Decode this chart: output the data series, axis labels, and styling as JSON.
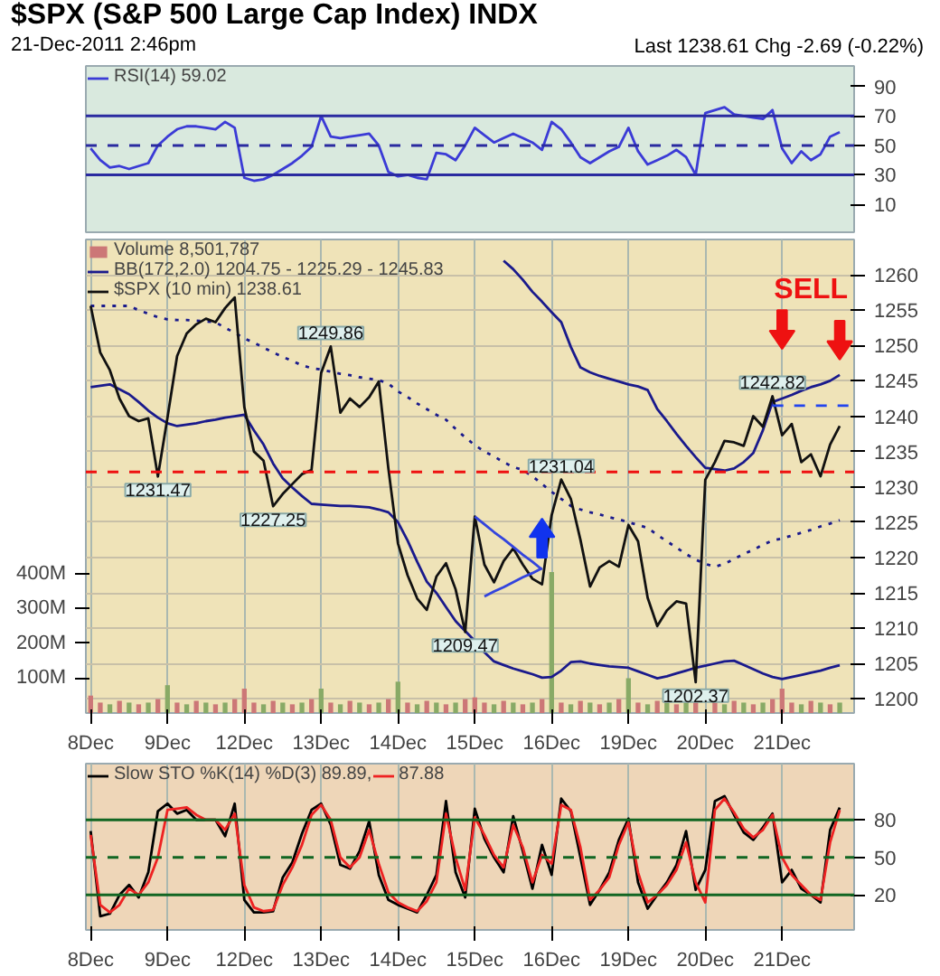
{
  "chart_data": [
    {
      "type": "line",
      "title": "$SPX (S&P 500 Large Cap Index) INDX",
      "subtitle": "21-Dec-2011 2:46pm",
      "annotations": [
        "Last 1238.61 Chg -2.69 (-0.22%)"
      ],
      "categories": [
        null,
        null,
        null,
        null,
        null,
        null,
        null,
        null,
        null,
        null,
        null,
        null,
        null,
        null,
        null,
        null,
        null,
        null,
        null,
        null,
        null,
        null,
        null,
        null,
        null,
        null,
        null,
        null,
        null,
        null,
        null,
        null,
        null,
        null,
        null,
        null,
        null,
        null,
        null,
        null,
        null,
        null,
        null,
        null,
        null,
        null,
        null,
        null,
        null,
        null,
        null,
        null,
        null,
        null,
        null,
        null,
        null,
        null,
        null,
        null,
        null,
        null,
        null,
        null,
        null,
        null,
        null,
        null,
        null,
        null,
        null,
        null,
        null,
        null,
        null,
        null,
        null,
        null,
        null,
        null
      ],
      "ylim": [
        -9,
        104
      ],
      "yticks": [
        10,
        30,
        50,
        70,
        90
      ],
      "tick_labels": "y",
      "legend": "top left",
      "ref_lines": [
        {
          "axis": "y",
          "value": 70,
          "color": "#2a2aa0"
        },
        {
          "axis": "y",
          "value": 50,
          "color": "#2a2aa0",
          "line_style": "dashed"
        },
        {
          "axis": "y",
          "value": 30,
          "color": "#2a2aa0"
        }
      ],
      "series": [
        {
          "name": "RSI(14) 59.02",
          "color": "#3b3bd6",
          "values": [
            48,
            40,
            35,
            36,
            34,
            36,
            38,
            50,
            56,
            61,
            63,
            63,
            62,
            61,
            66,
            62,
            28,
            26,
            27,
            30,
            34,
            38,
            43,
            49,
            70,
            56,
            55,
            56,
            57,
            58,
            50,
            32,
            29,
            30,
            28,
            27,
            45,
            44,
            40,
            50,
            62,
            57,
            52,
            55,
            58,
            55,
            52,
            47,
            66,
            61,
            52,
            42,
            38,
            42,
            46,
            49,
            62,
            46,
            37,
            40,
            43,
            47,
            42,
            30,
            72,
            74,
            76,
            71,
            70,
            69,
            68,
            74,
            48,
            38,
            46,
            40,
            44,
            56,
            59.02,
            null
          ]
        }
      ]
    },
    {
      "type": "line",
      "categories": [
        "8Dec",
        null,
        null,
        null,
        null,
        null,
        null,
        null,
        "9Dec",
        null,
        null,
        null,
        null,
        null,
        null,
        null,
        "12Dec",
        null,
        null,
        null,
        null,
        null,
        null,
        null,
        "13Dec",
        null,
        null,
        null,
        null,
        null,
        null,
        null,
        "14Dec",
        null,
        null,
        null,
        null,
        null,
        null,
        null,
        "15Dec",
        null,
        null,
        null,
        null,
        null,
        null,
        null,
        "16Dec",
        null,
        null,
        null,
        null,
        null,
        null,
        null,
        "19Dec",
        null,
        null,
        null,
        null,
        null,
        null,
        null,
        "20Dec",
        null,
        null,
        null,
        null,
        null,
        null,
        null,
        "21Dec",
        null,
        null,
        null,
        null,
        null,
        null,
        null
      ],
      "ylim": [
        1198,
        1265
      ],
      "yticks": [
        1200,
        1205,
        1210,
        1215,
        1220,
        1225,
        1230,
        1235,
        1240,
        1245,
        1250,
        1255,
        1260
      ],
      "y2lim": [
        0,
        1360
      ],
      "y2ticks": [
        {
          "value": 100,
          "label": "100M"
        },
        {
          "value": 200,
          "label": "200M"
        },
        {
          "value": 300,
          "label": "300M"
        },
        {
          "value": 400,
          "label": "400M"
        }
      ],
      "grid": true,
      "legend": "top left",
      "ref_lines": [
        {
          "axis": "y",
          "value": 1232.1,
          "color": "#ee1111",
          "line_style": "dashed"
        }
      ],
      "annotations": [
        {
          "text": "1231.47",
          "y": 1231.47
        },
        {
          "text": "1227.25",
          "y": 1227.25
        },
        {
          "text": "1249.86",
          "y": 1249.86
        },
        {
          "text": "1209.47",
          "y": 1209.47
        },
        {
          "text": "1231.04",
          "y": 1231.04
        },
        {
          "text": "1202.37",
          "y": 1202.37
        },
        {
          "text": "1242.82",
          "y": 1242.82
        },
        "SELL"
      ],
      "series": [
        {
          "name": "Volume 8,501,787",
          "type": "bar",
          "axis": "y2",
          "values": [
            50,
            30,
            25,
            35,
            30,
            25,
            30,
            40,
            80,
            30,
            25,
            35,
            30,
            25,
            30,
            40,
            70,
            30,
            25,
            35,
            30,
            25,
            30,
            40,
            70,
            30,
            25,
            35,
            30,
            25,
            30,
            40,
            90,
            30,
            25,
            35,
            30,
            25,
            30,
            40,
            45,
            30,
            25,
            35,
            30,
            25,
            30,
            40,
            405,
            30,
            25,
            35,
            30,
            25,
            30,
            40,
            100,
            30,
            25,
            35,
            30,
            25,
            30,
            40,
            null,
            30,
            25,
            35,
            30,
            25,
            30,
            40,
            70,
            30,
            25,
            35,
            30,
            25,
            30,
            null
          ],
          "colors": [
            "#cc7777",
            "#cc7777",
            "#88aa66",
            "#cc7777",
            "#88aa66",
            "#cc7777",
            "#88aa66",
            "#cc7777",
            "#88aa66",
            "#cc7777",
            "#88aa66",
            "#cc7777",
            "#88aa66",
            "#cc7777",
            "#88aa66",
            "#cc7777",
            "#cc7777",
            "#cc7777",
            "#88aa66",
            "#cc7777",
            "#88aa66",
            "#cc7777",
            "#88aa66",
            "#cc7777",
            "#88aa66",
            "#cc7777",
            "#88aa66",
            "#cc7777",
            "#88aa66",
            "#cc7777",
            "#88aa66",
            "#cc7777",
            "#88aa66",
            "#cc7777",
            "#88aa66",
            "#cc7777",
            "#88aa66",
            "#cc7777",
            "#88aa66",
            "#cc7777",
            "#cc7777",
            "#cc7777",
            "#88aa66",
            "#cc7777",
            "#88aa66",
            "#cc7777",
            "#88aa66",
            "#cc7777",
            "#88aa66",
            "#cc7777",
            "#88aa66",
            "#cc7777",
            "#88aa66",
            "#cc7777",
            "#88aa66",
            "#cc7777",
            "#88aa66",
            "#cc7777",
            "#88aa66",
            "#cc7777",
            "#88aa66",
            "#cc7777",
            "#88aa66",
            "#cc7777",
            "#cc7777",
            "#cc7777",
            "#88aa66",
            "#cc7777",
            "#88aa66",
            "#cc7777",
            "#88aa66",
            "#cc7777",
            "#cc7777",
            "#cc7777",
            "#88aa66",
            "#cc7777",
            "#88aa66",
            "#cc7777",
            "#88aa66",
            "#cc7777"
          ]
        },
        {
          "name": "BB(172,2.0) 1204.75 - 1225.29 - 1245.83",
          "color": "#1a1a8c",
          "values": [
            null,
            null,
            null,
            null,
            null,
            null,
            null,
            null,
            null,
            null,
            null,
            null,
            null,
            null,
            null,
            null,
            null,
            null,
            null,
            null,
            null,
            null,
            null,
            null,
            null,
            null,
            null,
            null,
            null,
            null,
            null,
            null,
            null,
            null,
            null,
            null,
            null,
            null,
            null,
            null,
            null,
            null,
            null,
            1262,
            1260.8,
            1259.3,
            1257.6,
            1256.2,
            1254.7,
            1253.3,
            1249.8,
            1246.9,
            1246.2,
            1245.7,
            1245.3,
            1244.9,
            1244.5,
            1244.2,
            1243.7,
            1241,
            1239.3,
            1237.5,
            1235.8,
            1234.2,
            1232.7,
            1232.5,
            1232.3,
            1232.6,
            1233.5,
            1234.8,
            1238,
            1242,
            1242.5,
            1243,
            1243.6,
            1244.1,
            1244.5,
            1245,
            1245.83,
            null
          ]
        },
        {
          "color": "#1a1a8c",
          "line_style": "dotted",
          "values": [
            1255.6,
            1255.6,
            1255.6,
            1255.6,
            1255.6,
            1255,
            1254.5,
            1254,
            1253.7,
            1253.6,
            1253.6,
            1253.5,
            1253.4,
            1253.3,
            1252.5,
            1251.8,
            1251,
            1250.4,
            1249.7,
            1249,
            1248.4,
            1247.8,
            1247.2,
            1246.8,
            1246.6,
            1246.3,
            1246,
            1245.8,
            1245.5,
            1245.3,
            1245.1,
            1244.6,
            1243.5,
            1242.7,
            1241.8,
            1241,
            1240.2,
            1239.5,
            1238.2,
            1237,
            1235.9,
            1235,
            1234.3,
            1233.5,
            1232.8,
            1232.4,
            1231.5,
            1230.4,
            1229.3,
            1228.3,
            1227.3,
            1226.8,
            1226.4,
            1226.1,
            1225.7,
            1225.4,
            1225,
            1224.6,
            1224.2,
            1223.2,
            1222.3,
            1221.4,
            1220.5,
            1219.7,
            1219.1,
            1218.7,
            1219.1,
            1219.8,
            1220.5,
            1221.1,
            1221.8,
            1222.4,
            1222.7,
            1223.1,
            1223.5,
            1223.9,
            1224.4,
            1224.8,
            1225.29,
            null
          ]
        },
        {
          "color": "#1a1a8c",
          "values": [
            1244.1,
            1244.3,
            1244.5,
            1243.8,
            1243.1,
            1242,
            1240.8,
            1239.8,
            1239,
            1238.6,
            1238.8,
            1239,
            1239.3,
            1239.5,
            1239.8,
            1240,
            1240.2,
            1238,
            1236,
            1233.3,
            1231.2,
            1229.9,
            1228.7,
            1227.6,
            1227.5,
            1227.4,
            1227.3,
            1227.3,
            1227.2,
            1227.1,
            1226.8,
            1226.4,
            1225,
            1222.4,
            1219.4,
            1216.6,
            1215,
            1213,
            1211,
            1209.6,
            1208.2,
            1206.6,
            1205.3,
            1204.8,
            1204.3,
            1203.9,
            1203.5,
            1203,
            1203.1,
            1204,
            1205.2,
            1205.3,
            1205,
            1204.8,
            1204.6,
            1204.5,
            1204.4,
            1203.9,
            1203.4,
            1202.9,
            1203.2,
            1203.6,
            1204,
            1204.4,
            1204.7,
            1205,
            1205.3,
            1205.4,
            1204.8,
            1204.2,
            1203.6,
            1203.1,
            1202.8,
            1203.1,
            1203.4,
            1203.7,
            1204,
            1204.4,
            1204.75,
            null
          ]
        },
        {
          "name": "$SPX (10 min) 1238.61",
          "color": "#111111",
          "values": [
            1255.6,
            1249,
            1246.5,
            1242.5,
            1240,
            1239.3,
            1239.7,
            1231.47,
            1239.8,
            1248.5,
            1251.7,
            1253,
            1253.8,
            1253.3,
            1255.3,
            1256.8,
            1241.3,
            1235,
            1233.7,
            1227.25,
            1229,
            1230.4,
            1231.8,
            1232.4,
            1246.1,
            1249.86,
            1240.5,
            1242.5,
            1241.3,
            1242.7,
            1244.9,
            1232.6,
            1222,
            1217.5,
            1214.2,
            1212.6,
            1217.3,
            1219.2,
            1215.5,
            1209.47,
            1225.8,
            1219,
            1216.5,
            1219.5,
            1221.3,
            1219,
            1217,
            1216.2,
            1226,
            1231.04,
            1228.3,
            1222.5,
            1215.9,
            1218.6,
            1219.5,
            1218.7,
            1224.6,
            1222.3,
            1214.3,
            1210.3,
            1212.5,
            1213.8,
            1213.5,
            1202.37,
            1231,
            1233.5,
            1236.5,
            1236.3,
            1235.8,
            1240,
            1238.5,
            1242.82,
            1237.3,
            1238.9,
            1233.5,
            1234.6,
            1231.5,
            1236,
            1238.61,
            null
          ]
        },
        {
          "color": "#3344dd",
          "values": [
            null,
            null,
            null,
            null,
            null,
            null,
            null,
            null,
            null,
            null,
            null,
            null,
            null,
            null,
            null,
            null,
            null,
            null,
            null,
            null,
            null,
            null,
            null,
            null,
            null,
            null,
            null,
            null,
            null,
            null,
            null,
            null,
            null,
            null,
            null,
            null,
            null,
            null,
            null,
            null,
            1225.8,
            1224.7,
            1223.6,
            1222.6,
            1221.5,
            1220.4,
            1219.4,
            1218.3,
            null,
            null,
            null,
            null,
            null,
            null,
            null,
            null,
            null,
            null,
            null,
            null,
            null,
            null,
            null,
            null,
            null,
            null,
            null,
            null,
            null,
            null,
            null,
            null,
            null,
            null,
            null,
            null,
            null,
            null,
            null,
            null
          ]
        },
        {
          "color": "#3344dd",
          "values": [
            null,
            null,
            null,
            null,
            null,
            null,
            null,
            null,
            null,
            null,
            null,
            null,
            null,
            null,
            null,
            null,
            null,
            null,
            null,
            null,
            null,
            null,
            null,
            null,
            null,
            null,
            null,
            null,
            null,
            null,
            null,
            null,
            null,
            null,
            null,
            null,
            null,
            null,
            null,
            null,
            null,
            1214.5,
            1215.2,
            1215.8,
            1216.5,
            1217.2,
            1217.8,
            1218.5,
            null,
            null,
            null,
            null,
            null,
            null,
            null,
            null,
            null,
            null,
            null,
            null,
            null,
            null,
            null,
            null,
            null,
            null,
            null,
            null,
            null,
            null,
            null,
            null,
            null,
            null,
            null,
            null,
            null,
            null,
            null,
            null
          ]
        },
        {
          "color": "#2244ee",
          "line_style": "dashed",
          "values": [
            null,
            null,
            null,
            null,
            null,
            null,
            null,
            null,
            null,
            null,
            null,
            null,
            null,
            null,
            null,
            null,
            null,
            null,
            null,
            null,
            null,
            null,
            null,
            null,
            null,
            null,
            null,
            null,
            null,
            null,
            null,
            null,
            null,
            null,
            null,
            null,
            null,
            null,
            null,
            null,
            null,
            null,
            null,
            null,
            null,
            null,
            null,
            null,
            null,
            null,
            null,
            null,
            null,
            null,
            null,
            null,
            null,
            null,
            null,
            null,
            null,
            null,
            null,
            null,
            null,
            null,
            null,
            null,
            null,
            null,
            null,
            1241.5,
            1241.5,
            1241.5,
            1241.5,
            1241.5,
            1241.5,
            1241.5,
            1241.5,
            1241.5
          ]
        }
      ]
    },
    {
      "type": "line",
      "categories": [
        "8Dec",
        null,
        null,
        null,
        null,
        null,
        null,
        null,
        "9Dec",
        null,
        null,
        null,
        null,
        null,
        null,
        null,
        "12Dec",
        null,
        null,
        null,
        null,
        null,
        null,
        null,
        "13Dec",
        null,
        null,
        null,
        null,
        null,
        null,
        null,
        "14Dec",
        null,
        null,
        null,
        null,
        null,
        null,
        null,
        "15Dec",
        null,
        null,
        null,
        null,
        null,
        null,
        null,
        "16Dec",
        null,
        null,
        null,
        null,
        null,
        null,
        null,
        "19Dec",
        null,
        null,
        null,
        null,
        null,
        null,
        null,
        "20Dec",
        null,
        null,
        null,
        null,
        null,
        null,
        null,
        "21Dec",
        null,
        null,
        null,
        null,
        null,
        null,
        null
      ],
      "ylim": [
        -8,
        125
      ],
      "yticks": [
        20,
        50,
        80
      ],
      "grid": "x",
      "legend": "top left",
      "ref_lines": [
        {
          "axis": "y",
          "value": 80,
          "color": "#116622"
        },
        {
          "axis": "y",
          "value": 50,
          "color": "#116622",
          "line_style": "dashed"
        },
        {
          "axis": "y",
          "value": 20,
          "color": "#116622"
        }
      ],
      "series": [
        {
          "name": "Slow STO %K(14) %D(3) 89.89,",
          "color": "#000000",
          "values": [
            71,
            3,
            5,
            20,
            28,
            18,
            38,
            87,
            93,
            85,
            88,
            80,
            80,
            80,
            67,
            93,
            16,
            6,
            6,
            7,
            34,
            46,
            69,
            88,
            93,
            76,
            44,
            41,
            55,
            79,
            36,
            16,
            12,
            9,
            6,
            20,
            36,
            95,
            38,
            18,
            89,
            65,
            50,
            38,
            83,
            55,
            25,
            60,
            36,
            97,
            87,
            50,
            12,
            24,
            38,
            64,
            81,
            30,
            9,
            20,
            30,
            44,
            71,
            24,
            40,
            95,
            99,
            84,
            70,
            64,
            74,
            85,
            30,
            40,
            25,
            20,
            14,
            72,
            89.89,
            null
          ]
        },
        {
          "name": "87.88",
          "color": "#ee2222",
          "values": [
            68,
            12,
            6,
            12,
            25,
            20,
            30,
            50,
            88,
            89,
            90,
            84,
            80,
            80,
            72,
            85,
            28,
            10,
            7,
            8,
            28,
            42,
            60,
            84,
            92,
            80,
            50,
            42,
            50,
            72,
            45,
            22,
            14,
            10,
            7,
            15,
            30,
            85,
            50,
            24,
            82,
            68,
            52,
            42,
            76,
            58,
            30,
            52,
            45,
            92,
            88,
            58,
            16,
            24,
            34,
            60,
            78,
            38,
            14,
            20,
            28,
            40,
            62,
            30,
            14,
            88,
            97,
            86,
            73,
            66,
            72,
            84,
            50,
            36,
            28,
            20,
            16,
            62,
            87.88,
            null
          ]
        }
      ]
    }
  ]
}
